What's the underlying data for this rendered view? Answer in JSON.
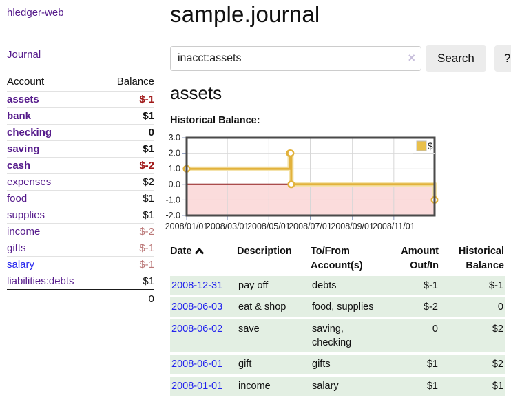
{
  "sidebar": {
    "brand": "hledger-web",
    "journal_link": "Journal",
    "account_header": "Account",
    "balance_header": "Balance",
    "accounts": [
      {
        "name": "assets",
        "balance": "$-1",
        "depth": 1,
        "bold": true,
        "amount_class": "amt-neg-strong"
      },
      {
        "name": "bank",
        "balance": "$1",
        "depth": 2,
        "bold": true,
        "amount_class": ""
      },
      {
        "name": "checking",
        "balance": "0",
        "depth": 3,
        "bold": true,
        "amount_class": ""
      },
      {
        "name": "saving",
        "balance": "$1",
        "depth": 3,
        "bold": true,
        "amount_class": ""
      },
      {
        "name": "cash",
        "balance": "$-2",
        "depth": 2,
        "bold": true,
        "amount_class": "amt-neg-strong"
      },
      {
        "name": "expenses",
        "balance": "$2",
        "depth": 1,
        "bold": false,
        "amount_class": ""
      },
      {
        "name": "food",
        "balance": "$1",
        "depth": 2,
        "bold": false,
        "amount_class": ""
      },
      {
        "name": "supplies",
        "balance": "$1",
        "depth": 2,
        "bold": false,
        "amount_class": ""
      },
      {
        "name": "income",
        "balance": "$-2",
        "depth": 1,
        "bold": false,
        "amount_class": "amt-neg-muted"
      },
      {
        "name": "gifts",
        "balance": "$-1",
        "depth": 2,
        "bold": false,
        "amount_class": "amt-neg-muted"
      },
      {
        "name": "salary",
        "balance": "$-1",
        "depth": 2,
        "bold": false,
        "amount_class": "amt-neg-muted",
        "link_blue": true
      },
      {
        "name": "liabilities:debts",
        "balance": "$1",
        "depth": 1,
        "bold": false,
        "amount_class": ""
      }
    ],
    "total": "0"
  },
  "main": {
    "title": "sample.journal",
    "search": {
      "value": "inacct:assets",
      "clear_icon": "×",
      "button_label": "Search",
      "help_label": "?"
    },
    "account_heading": "assets",
    "chart_label": "Historical Balance:"
  },
  "chart_data": {
    "type": "line",
    "title": "Historical Balance:",
    "step": true,
    "series": [
      {
        "name": "$",
        "color": "#e2b23c",
        "points": [
          {
            "date": "2008-01-01",
            "value": 1
          },
          {
            "date": "2008-06-01",
            "value": 2
          },
          {
            "date": "2008-06-02",
            "value": 2
          },
          {
            "date": "2008-06-03",
            "value": 0
          },
          {
            "date": "2008-12-31",
            "value": -1
          }
        ]
      }
    ],
    "x_range": [
      "2008-01-01",
      "2008-12-31"
    ],
    "ylim": [
      -2,
      3
    ],
    "y_tick_labels": [
      "3.0",
      "2.0",
      "1.0",
      "0.0",
      "-1.0",
      "-2.0"
    ],
    "y_ticks": [
      3,
      2,
      1,
      0,
      -1,
      -2
    ],
    "x_tick_labels": [
      "2008/01/01",
      "2008/03/01",
      "2008/05/01",
      "2008/07/01",
      "2008/09/01",
      "2008/11/01"
    ],
    "grid": true,
    "legend": {
      "label": "$",
      "position": "top-right"
    },
    "negative_region_color": "#fbdcdc",
    "zero_line_color": "#8f1c1c"
  },
  "register": {
    "columns": {
      "date": "Date",
      "description": "Description",
      "accounts": "To/From\nAccount(s)",
      "amount": "Amount\nOut/In",
      "balance": "Historical\nBalance"
    },
    "sort_column": "date",
    "rows": [
      {
        "date": "2008-12-31",
        "description": "pay off",
        "accounts": "debts",
        "amount": "$-1",
        "amount_class": "amt-neg",
        "balance": "$-1",
        "balance_class": "amt-neg"
      },
      {
        "date": "2008-06-03",
        "description": "eat & shop",
        "accounts": "food, supplies",
        "amount": "$-2",
        "amount_class": "amt-neg",
        "balance": "0",
        "balance_class": ""
      },
      {
        "date": "2008-06-02",
        "description": "save",
        "accounts": "saving,\nchecking",
        "amount": "0",
        "amount_class": "",
        "balance": "$2",
        "balance_class": ""
      },
      {
        "date": "2008-06-01",
        "description": "gift",
        "accounts": "gifts",
        "amount": "$1",
        "amount_class": "",
        "balance": "$2",
        "balance_class": ""
      },
      {
        "date": "2008-01-01",
        "description": "income",
        "accounts": "salary",
        "amount": "$1",
        "amount_class": "",
        "balance": "$1",
        "balance_class": ""
      }
    ]
  },
  "colors": {
    "purple": "#551a8b",
    "blue": "#2222ee",
    "neg-strong": "#a01818",
    "neg-muted": "#bb7878",
    "row-green": "#e3efe3",
    "gold": "#e2b23c",
    "pink": "#fbdcdc",
    "zeroline": "#8f1c1c"
  }
}
